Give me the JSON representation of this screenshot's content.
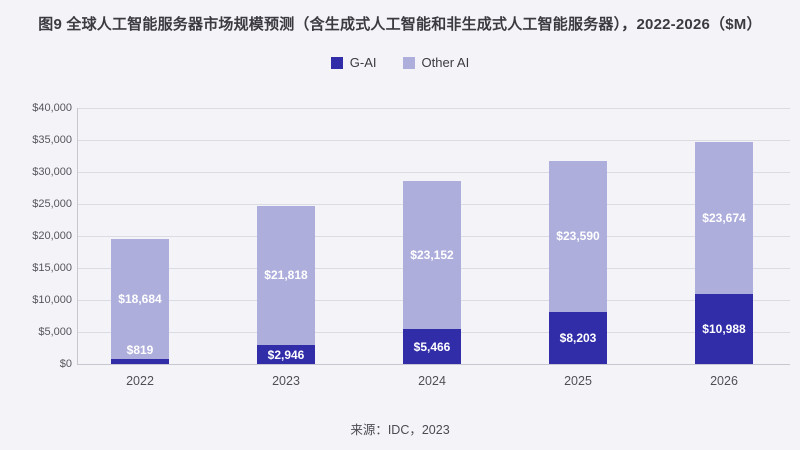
{
  "title": "图9 全球人工智能服务器市场规模预测（含生成式人工智能和非生成式人工智能服务器），2022-2026（$M）",
  "source": "来源：IDC，2023",
  "colors": {
    "background": "#F4F4F8",
    "g_ai": "#312DA9",
    "other_ai": "#AEAEDD",
    "gridline": "#DBDBE2",
    "axis_line": "#C7C7D0",
    "title_text": "#3A3A40",
    "axis_text": "#55555D",
    "value_label_text": "#FFFFFF"
  },
  "chart_data": {
    "type": "bar",
    "stacked": true,
    "title": "图9 全球人工智能服务器市场规模预测（含生成式人工智能和非生成式人工智能服务器），2022-2026（$M）",
    "categories": [
      "2022",
      "2023",
      "2024",
      "2025",
      "2026"
    ],
    "series": [
      {
        "name": "G-AI",
        "color": "#312DA9",
        "values": [
          819,
          2946,
          5466,
          8203,
          10988
        ],
        "data_labels": [
          "$819",
          "$2,946",
          "$5,466",
          "$8,203",
          "$10,988"
        ]
      },
      {
        "name": "Other AI",
        "color": "#AEAEDD",
        "values": [
          18684,
          21818,
          23152,
          23590,
          23674
        ],
        "data_labels": [
          "$18,684",
          "$21,818",
          "$23,152",
          "$23,590",
          "$23,674"
        ]
      }
    ],
    "xlabel": "",
    "ylabel": "",
    "ylim": [
      0,
      40000
    ],
    "ytick_step": 5000,
    "ytick_labels": [
      "$0",
      "$5,000",
      "$10,000",
      "$15,000",
      "$20,000",
      "$25,000",
      "$30,000",
      "$35,000",
      "$40,000"
    ],
    "grid": true,
    "legend_position": "top",
    "source": "来源：IDC，2023"
  }
}
